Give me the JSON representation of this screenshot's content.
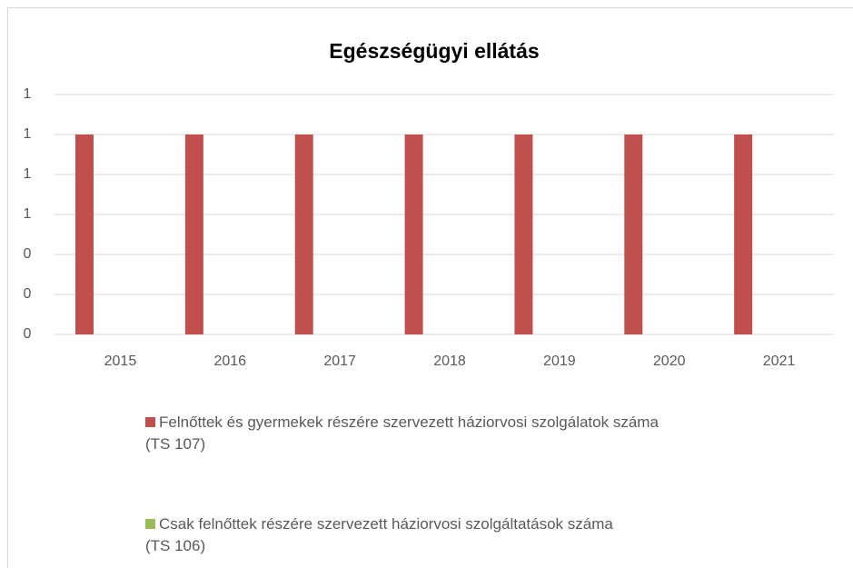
{
  "chart_data": {
    "type": "bar",
    "title": "Egészségügyi ellátás",
    "categories": [
      "2015",
      "2016",
      "2017",
      "2018",
      "2019",
      "2020",
      "2021"
    ],
    "series": [
      {
        "name": "Felnőttek és gyermekek részére szervezett háziorvosi szolgálatok száma\n(TS 107)",
        "color": "#c0504d",
        "values": [
          1,
          1,
          1,
          1,
          1,
          1,
          1
        ]
      },
      {
        "name": "Csak felnőttek részére szervezett háziorvosi szolgáltatások száma\n(TS 106)",
        "color": "#9bbb59",
        "values": [
          0,
          0,
          0,
          0,
          0,
          0,
          0
        ]
      }
    ],
    "ylim": [
      0,
      1.2
    ],
    "yticks": [
      0,
      {
        "value": 0.2,
        "label": "0"
      },
      {
        "value": 0.4,
        "label": "0"
      },
      {
        "value": 0.6,
        "label": "1"
      },
      {
        "value": 0.8,
        "label": "1"
      },
      1,
      {
        "value": 1.2,
        "label": "1"
      }
    ],
    "grid": true,
    "legend": "bottom"
  }
}
